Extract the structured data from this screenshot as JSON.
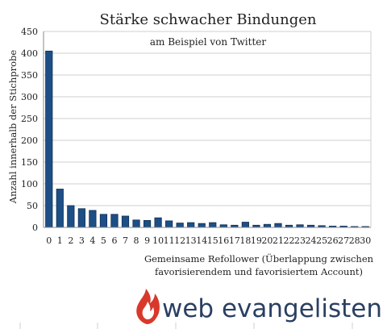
{
  "chart_data": {
    "type": "bar",
    "title": "Stärke schwacher Bindungen",
    "subtitle": "am Beispiel von Twitter",
    "ylabel": "Anzahl innerhalb der Stichprobe",
    "xlabel_line1": "Gemeinsame Refollower (Überlappung zwischen",
    "xlabel_line2": "favorisierendem und favorisiertem Account)",
    "ylim": [
      0,
      450
    ],
    "yticks": [
      0,
      50,
      100,
      150,
      200,
      250,
      300,
      350,
      400,
      450
    ],
    "grid": true,
    "categories": [
      "0",
      "1",
      "2",
      "3",
      "4",
      "5",
      "6",
      "7",
      "8",
      "9",
      "10",
      "11",
      "12",
      "13",
      "14",
      "15",
      "16",
      "17",
      "18",
      "19",
      "20",
      "21",
      "22",
      "23",
      "24",
      "25",
      "26",
      "27",
      "28",
      "30"
    ],
    "series": [
      {
        "values": [
          405,
          88,
          50,
          43,
          39,
          30,
          30,
          26,
          17,
          16,
          22,
          15,
          10,
          11,
          9,
          11,
          6,
          5,
          12,
          5,
          7,
          9,
          5,
          6,
          5,
          4,
          3,
          3,
          2,
          2
        ]
      }
    ]
  },
  "brand": {
    "logo_text": "web evangelisten",
    "logo_icon": "flame-icon",
    "flame_color": "#d8392b",
    "text_color": "#2a3f62"
  },
  "colors": {
    "bar": "#1d4f86",
    "grid": "#cfcfcf"
  }
}
